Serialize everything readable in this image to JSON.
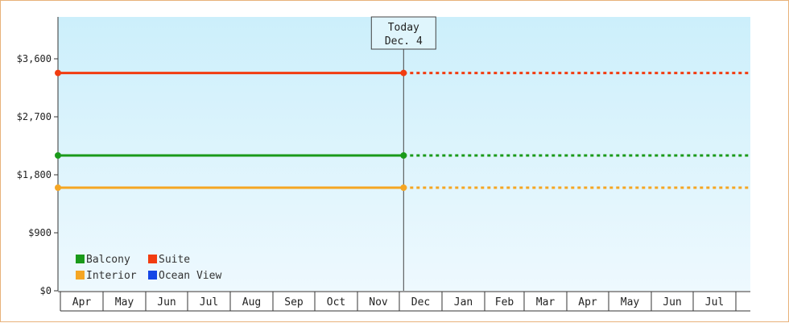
{
  "chart_data": {
    "type": "line",
    "x_range": [
      "Apr",
      "Aug"
    ],
    "y_ticks": [
      0,
      900,
      1800,
      2700,
      3600
    ],
    "y_tick_labels": [
      "$0",
      "$900",
      "$1,800",
      "$2,700",
      "$3,600"
    ],
    "ylim": [
      0,
      4250
    ],
    "months": [
      "Apr",
      "May",
      "Jun",
      "Jul",
      "Aug",
      "Sep",
      "Oct",
      "Nov",
      "Dec",
      "Jan",
      "Feb",
      "Mar",
      "Apr",
      "May",
      "Jun",
      "Jul"
    ],
    "today": {
      "label_line1": "Today",
      "label_line2": "Dec. 4",
      "month_position": 8.1
    },
    "series": [
      {
        "name": "Balcony",
        "color": "#1a9a1a",
        "value": 2100
      },
      {
        "name": "Suite",
        "color": "#f23c10",
        "value": 3380
      },
      {
        "name": "Interior",
        "color": "#f5a623",
        "value": 1600
      },
      {
        "name": "Ocean View",
        "color": "#1446e6",
        "value": null
      }
    ],
    "legend_placement": "bottom-left",
    "grid": false
  }
}
